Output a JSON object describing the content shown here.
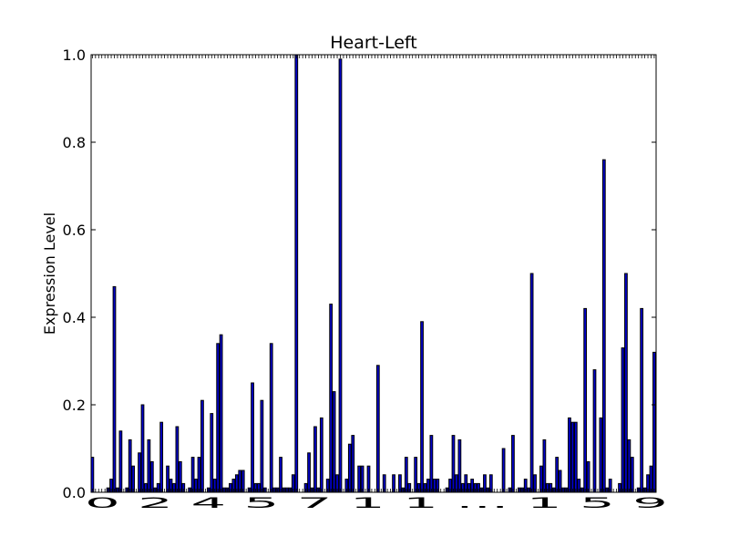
{
  "chart_data": {
    "type": "bar",
    "title": "Heart-Left",
    "xlabel": "",
    "ylabel": "Expression Level",
    "ylim": [
      0,
      1.0
    ],
    "yticks": [
      "0.0",
      "0.2",
      "0.4",
      "0.6",
      "0.8",
      "1.0"
    ],
    "xtick_labels_visible": "0 2 4 5 7 1 1 ... 1 5 9",
    "xlim": [
      0,
      180
    ],
    "bar_color": "#0000cc",
    "grid": false,
    "legend": "none",
    "values": [
      0.08,
      0.0,
      0.0,
      0.0,
      0.0,
      0.01,
      0.03,
      0.47,
      0.01,
      0.14,
      0.0,
      0.01,
      0.12,
      0.06,
      0.0,
      0.09,
      0.2,
      0.02,
      0.12,
      0.07,
      0.01,
      0.02,
      0.16,
      0.0,
      0.06,
      0.03,
      0.02,
      0.15,
      0.07,
      0.02,
      0.0,
      0.01,
      0.08,
      0.03,
      0.08,
      0.21,
      0.0,
      0.01,
      0.18,
      0.03,
      0.34,
      0.36,
      0.01,
      0.01,
      0.02,
      0.03,
      0.04,
      0.05,
      0.05,
      0.0,
      0.01,
      0.25,
      0.02,
      0.02,
      0.21,
      0.01,
      0.0,
      0.34,
      0.01,
      0.01,
      0.08,
      0.01,
      0.01,
      0.01,
      0.04,
      1.0,
      0.0,
      0.0,
      0.02,
      0.09,
      0.01,
      0.15,
      0.01,
      0.17,
      0.0,
      0.03,
      0.43,
      0.23,
      0.04,
      0.99,
      0.0,
      0.03,
      0.11,
      0.13,
      0.0,
      0.06,
      0.06,
      0.0,
      0.06,
      0.0,
      0.0,
      0.29,
      0.0,
      0.04,
      0.0,
      0.0,
      0.04,
      0.0,
      0.04,
      0.01,
      0.08,
      0.02,
      0.0,
      0.08,
      0.02,
      0.39,
      0.02,
      0.03,
      0.13,
      0.03,
      0.03,
      0.0,
      0.0,
      0.01,
      0.03,
      0.13,
      0.04,
      0.12,
      0.02,
      0.04,
      0.02,
      0.03,
      0.02,
      0.02,
      0.01,
      0.04,
      0.01,
      0.04,
      0.0,
      0.0,
      0.0,
      0.1,
      0.0,
      0.01,
      0.13,
      0.0,
      0.01,
      0.01,
      0.03,
      0.01,
      0.5,
      0.04,
      0.0,
      0.06,
      0.12,
      0.02,
      0.02,
      0.01,
      0.08,
      0.05,
      0.01,
      0.01,
      0.17,
      0.16,
      0.16,
      0.03,
      0.01,
      0.42,
      0.07,
      0.0,
      0.28,
      0.0,
      0.17,
      0.76,
      0.01,
      0.03,
      0.0,
      0.0,
      0.02,
      0.33,
      0.5,
      0.12,
      0.08,
      0.0,
      0.01,
      0.42,
      0.01,
      0.04,
      0.06,
      0.32
    ]
  }
}
